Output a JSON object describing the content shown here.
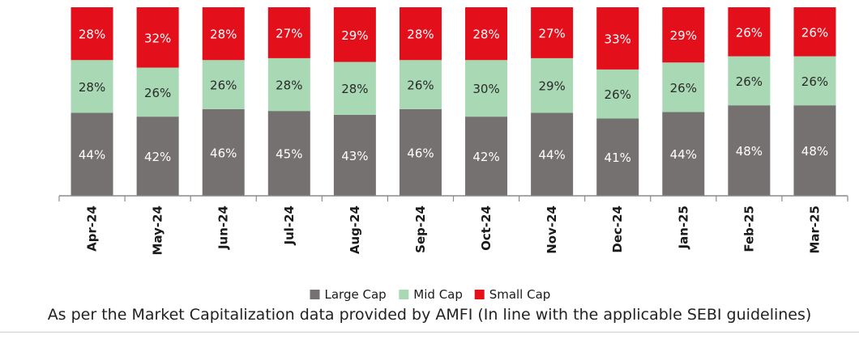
{
  "chart_data": {
    "type": "bar",
    "stacked": true,
    "percent": true,
    "categories": [
      "Apr-24",
      "May-24",
      "Jun-24",
      "Jul-24",
      "Aug-24",
      "Sep-24",
      "Oct-24",
      "Nov-24",
      "Dec-24",
      "Jan-25",
      "Feb-25",
      "Mar-25"
    ],
    "series": [
      {
        "name": "Large Cap",
        "color": "#747170",
        "values": [
          44,
          42,
          46,
          45,
          43,
          46,
          42,
          44,
          41,
          44,
          48,
          48
        ]
      },
      {
        "name": "Mid Cap",
        "color": "#a8d8b4",
        "values": [
          28,
          26,
          26,
          28,
          28,
          26,
          30,
          29,
          26,
          26,
          26,
          26
        ]
      },
      {
        "name": "Small Cap",
        "color": "#e3101c",
        "values": [
          28,
          32,
          28,
          27,
          29,
          28,
          28,
          27,
          33,
          29,
          26,
          26
        ]
      }
    ],
    "ylim": [
      0,
      100
    ],
    "grid": false,
    "legend_position": "bottom-center",
    "value_suffix": "%"
  },
  "footnote": "As per the Market Capitalization data provided by AMFI (In line with the applicable SEBI guidelines)"
}
